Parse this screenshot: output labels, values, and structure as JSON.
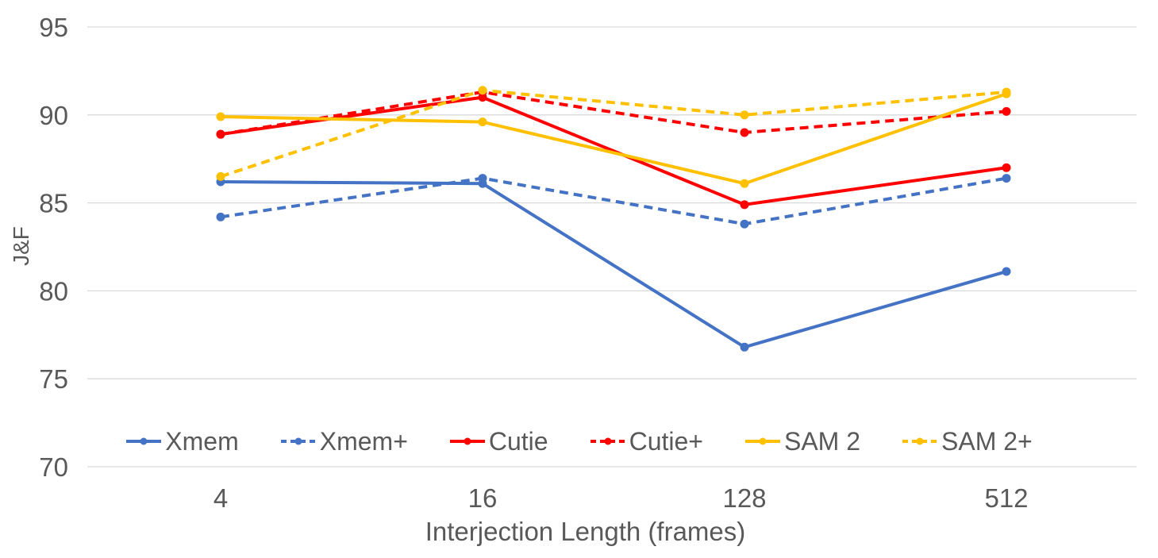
{
  "chart_data": {
    "type": "line",
    "title": "",
    "xlabel": "Interjection Length (frames)",
    "ylabel": "J&F",
    "categories": [
      "4",
      "16",
      "128",
      "512"
    ],
    "y_ticks": [
      70,
      75,
      80,
      85,
      90,
      95
    ],
    "ylim": [
      70,
      95
    ],
    "grid": true,
    "legend_position": "bottom-center-inside",
    "series": [
      {
        "name": "Xmem",
        "color": "#4472C4",
        "style": "solid",
        "values": [
          86.2,
          86.1,
          76.8,
          81.1
        ]
      },
      {
        "name": "Xmem+",
        "color": "#4472C4",
        "style": "dashed",
        "values": [
          84.2,
          86.4,
          83.8,
          86.4
        ]
      },
      {
        "name": "Cutie",
        "color": "#FF0000",
        "style": "solid",
        "values": [
          88.9,
          91.0,
          84.9,
          87.0
        ]
      },
      {
        "name": "Cutie+",
        "color": "#FF0000",
        "style": "dashed",
        "values": [
          88.9,
          91.3,
          89.0,
          90.2
        ]
      },
      {
        "name": "SAM 2",
        "color": "#FFC000",
        "style": "solid",
        "values": [
          89.9,
          89.6,
          86.1,
          91.2
        ]
      },
      {
        "name": "SAM 2+",
        "color": "#FFC000",
        "style": "dashed",
        "values": [
          86.5,
          91.4,
          90.0,
          91.3
        ]
      }
    ],
    "colors": {
      "gridline": "#D9D9D9",
      "text": "#595959",
      "background": "#FFFFFF"
    }
  }
}
